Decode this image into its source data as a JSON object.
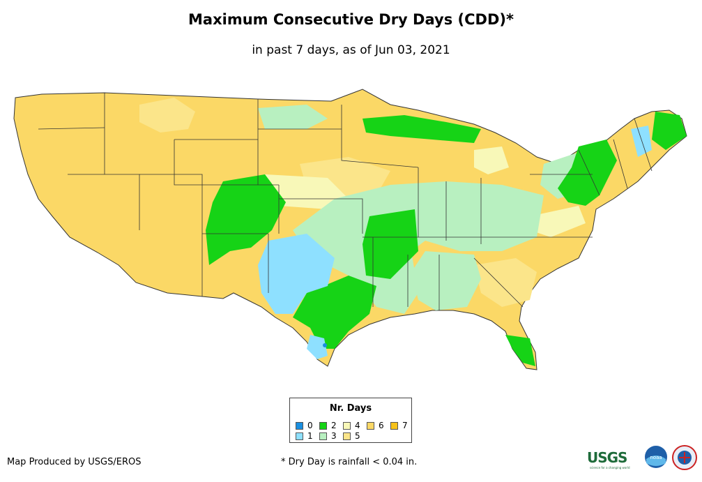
{
  "title": "Maximum Consecutive Dry Days (CDD)*",
  "subtitle": "in past 7 days, as of Jun 03, 2021",
  "legend": {
    "title": "Nr. Days",
    "items": [
      {
        "label": "0",
        "color": "#1a8fe0"
      },
      {
        "label": "1",
        "color": "#8ee0ff"
      },
      {
        "label": "2",
        "color": "#16d316"
      },
      {
        "label": "3",
        "color": "#b8f0c0"
      },
      {
        "label": "4",
        "color": "#f8f8b8"
      },
      {
        "label": "5",
        "color": "#fbe58a"
      },
      {
        "label": "6",
        "color": "#fbd866"
      },
      {
        "label": "7",
        "color": "#f6c21a"
      }
    ]
  },
  "credit": "Map Produced by USGS/EROS",
  "footnote": "* Dry Day is rainfall < 0.04 in.",
  "logos": {
    "usgs": "USGS",
    "usgs_tagline": "science for a changing world",
    "noaa": "noaa"
  },
  "map": {
    "colors": {
      "dry6": "#fbd866",
      "dry5": "#fbe58a",
      "dry4": "#f8f8b8",
      "dry3": "#b8f0c0",
      "dry2": "#16d316",
      "dry1": "#8ee0ff",
      "dry0": "#1a8fe0",
      "border": "#333333"
    }
  }
}
